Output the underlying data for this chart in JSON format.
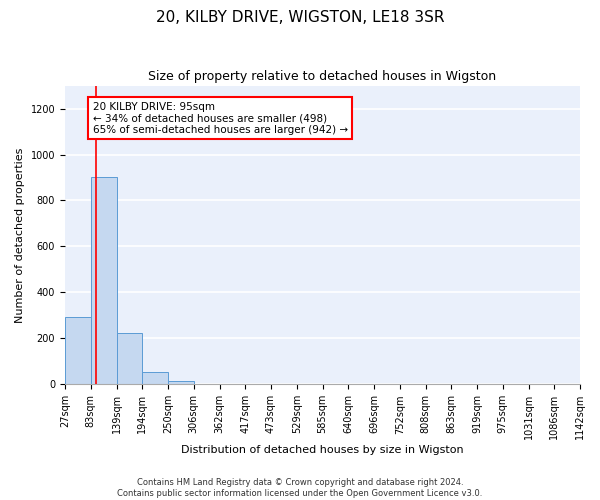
{
  "title": "20, KILBY DRIVE, WIGSTON, LE18 3SR",
  "subtitle": "Size of property relative to detached houses in Wigston",
  "xlabel": "Distribution of detached houses by size in Wigston",
  "ylabel": "Number of detached properties",
  "footer_line1": "Contains HM Land Registry data © Crown copyright and database right 2024.",
  "footer_line2": "Contains public sector information licensed under the Open Government Licence v3.0.",
  "bin_edges": [
    27,
    83,
    139,
    194,
    250,
    306,
    362,
    417,
    473,
    529,
    585,
    640,
    696,
    752,
    808,
    863,
    919,
    975,
    1031,
    1086,
    1142
  ],
  "bar_heights": [
    295,
    900,
    225,
    55,
    15,
    0,
    0,
    0,
    0,
    0,
    0,
    0,
    0,
    0,
    0,
    0,
    0,
    0,
    0,
    0
  ],
  "bar_color": "#c5d8f0",
  "bar_edge_color": "#5b9bd5",
  "red_line_x": 95,
  "annotation_text": "20 KILBY DRIVE: 95sqm\n← 34% of detached houses are smaller (498)\n65% of semi-detached houses are larger (942) →",
  "ylim": [
    0,
    1300
  ],
  "yticks": [
    0,
    200,
    400,
    600,
    800,
    1000,
    1200
  ],
  "background_color": "#eaf0fb",
  "grid_color": "#ffffff",
  "title_fontsize": 11,
  "subtitle_fontsize": 9,
  "ylabel_fontsize": 8,
  "xlabel_fontsize": 8,
  "tick_fontsize": 7,
  "footer_fontsize": 6,
  "ann_fontsize": 7.5
}
